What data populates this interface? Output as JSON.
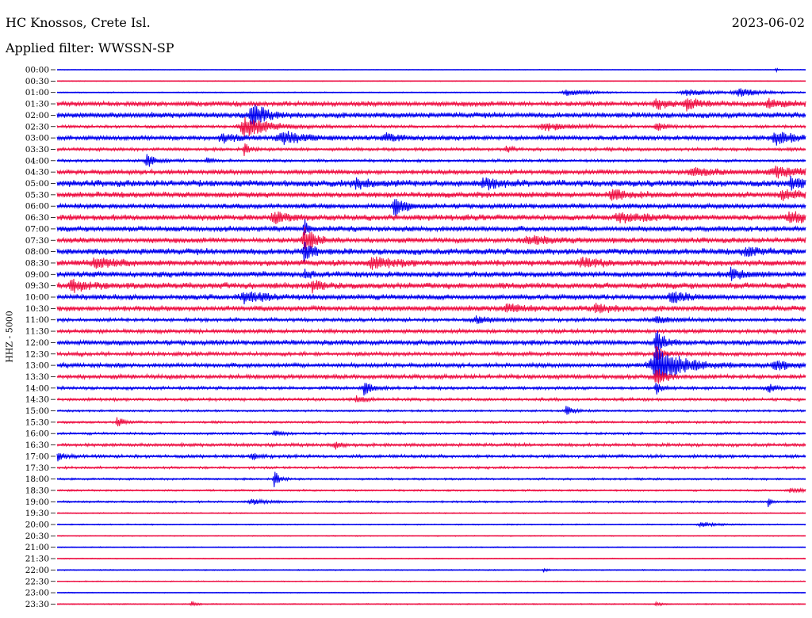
{
  "header": {
    "station": "HC Knossos, Crete Isl.",
    "filter": "Applied filter: WWSSN-SP",
    "date": "2023-06-02",
    "channel": "HHZ - 5000"
  },
  "colors": {
    "trace_a": "#0000ee",
    "trace_b": "#ee1144"
  },
  "chart_data": {
    "type": "line",
    "title": "HC Knossos, Crete Isl.",
    "subtitle": "Applied filter: WWSSN-SP",
    "ylabel": "HHZ - 5000",
    "grid": false,
    "legend": "none",
    "x_range_minutes": [
      0,
      30
    ],
    "rows": [
      {
        "label": "00:00",
        "noise": 0.3,
        "color": "a",
        "events": [
          {
            "x": 0.96,
            "amp": 3,
            "w": 0.003
          }
        ]
      },
      {
        "label": "00:30",
        "noise": 0.4,
        "color": "b",
        "events": []
      },
      {
        "label": "01:00",
        "noise": 0.5,
        "color": "a",
        "events": [
          {
            "x": 0.68,
            "amp": 4,
            "w": 0.03
          },
          {
            "x": 0.84,
            "amp": 4,
            "w": 0.04
          },
          {
            "x": 0.91,
            "amp": 5,
            "w": 0.03
          }
        ]
      },
      {
        "label": "01:30",
        "noise": 2.6,
        "color": "b",
        "events": [
          {
            "x": 0.8,
            "amp": 6,
            "w": 0.02
          },
          {
            "x": 0.84,
            "amp": 6,
            "w": 0.02
          },
          {
            "x": 0.95,
            "amp": 5,
            "w": 0.03
          }
        ]
      },
      {
        "label": "02:00",
        "noise": 2.8,
        "color": "a",
        "events": [
          {
            "x": 0.26,
            "amp": 18,
            "w": 0.015
          }
        ]
      },
      {
        "label": "02:30",
        "noise": 1.5,
        "color": "b",
        "events": [
          {
            "x": 0.25,
            "amp": 14,
            "w": 0.03
          },
          {
            "x": 0.65,
            "amp": 5,
            "w": 0.03
          },
          {
            "x": 0.8,
            "amp": 6,
            "w": 0.01
          }
        ]
      },
      {
        "label": "03:00",
        "noise": 2.4,
        "color": "a",
        "events": [
          {
            "x": 0.22,
            "amp": 5,
            "w": 0.02
          },
          {
            "x": 0.3,
            "amp": 8,
            "w": 0.03
          },
          {
            "x": 0.44,
            "amp": 5,
            "w": 0.02
          },
          {
            "x": 0.96,
            "amp": 7,
            "w": 0.03
          }
        ]
      },
      {
        "label": "03:30",
        "noise": 1.6,
        "color": "b",
        "events": [
          {
            "x": 0.25,
            "amp": 8,
            "w": 0.006
          },
          {
            "x": 0.6,
            "amp": 4,
            "w": 0.006
          }
        ]
      },
      {
        "label": "04:00",
        "noise": 1.4,
        "color": "a",
        "events": [
          {
            "x": 0.12,
            "amp": 9,
            "w": 0.012
          },
          {
            "x": 0.2,
            "amp": 4,
            "w": 0.005
          }
        ]
      },
      {
        "label": "04:30",
        "noise": 2.4,
        "color": "b",
        "events": [
          {
            "x": 0.85,
            "amp": 5,
            "w": 0.03
          },
          {
            "x": 0.96,
            "amp": 6,
            "w": 0.04
          }
        ]
      },
      {
        "label": "05:00",
        "noise": 3.4,
        "color": "a",
        "events": [
          {
            "x": 0.4,
            "amp": 6,
            "w": 0.02
          },
          {
            "x": 0.57,
            "amp": 6,
            "w": 0.02
          },
          {
            "x": 0.98,
            "amp": 6,
            "w": 0.02
          }
        ]
      },
      {
        "label": "05:30",
        "noise": 3.0,
        "color": "b",
        "events": [
          {
            "x": 0.74,
            "amp": 6,
            "w": 0.02
          },
          {
            "x": 0.97,
            "amp": 6,
            "w": 0.02
          }
        ]
      },
      {
        "label": "06:00",
        "noise": 2.6,
        "color": "a",
        "events": [
          {
            "x": 0.45,
            "amp": 13,
            "w": 0.012
          }
        ]
      },
      {
        "label": "06:30",
        "noise": 3.0,
        "color": "b",
        "events": [
          {
            "x": 0.29,
            "amp": 6,
            "w": 0.02
          },
          {
            "x": 0.75,
            "amp": 6,
            "w": 0.03
          },
          {
            "x": 0.98,
            "amp": 8,
            "w": 0.02
          }
        ]
      },
      {
        "label": "07:00",
        "noise": 2.8,
        "color": "a",
        "events": [
          {
            "x": 0.33,
            "amp": 12,
            "w": 0.006
          }
        ]
      },
      {
        "label": "07:30",
        "noise": 2.8,
        "color": "b",
        "events": [
          {
            "x": 0.33,
            "amp": 18,
            "w": 0.012
          },
          {
            "x": 0.63,
            "amp": 5,
            "w": 0.03
          }
        ]
      },
      {
        "label": "08:00",
        "noise": 3.2,
        "color": "a",
        "events": [
          {
            "x": 0.33,
            "amp": 14,
            "w": 0.01
          },
          {
            "x": 0.92,
            "amp": 6,
            "w": 0.02
          }
        ]
      },
      {
        "label": "08:30",
        "noise": 3.2,
        "color": "b",
        "events": [
          {
            "x": 0.05,
            "amp": 5,
            "w": 0.03
          },
          {
            "x": 0.42,
            "amp": 6,
            "w": 0.03
          },
          {
            "x": 0.7,
            "amp": 6,
            "w": 0.02
          }
        ]
      },
      {
        "label": "09:00",
        "noise": 3.0,
        "color": "a",
        "events": [
          {
            "x": 0.33,
            "amp": 8,
            "w": 0.006
          },
          {
            "x": 0.9,
            "amp": 6,
            "w": 0.02
          }
        ]
      },
      {
        "label": "09:30",
        "noise": 3.2,
        "color": "b",
        "events": [
          {
            "x": 0.02,
            "amp": 7,
            "w": 0.02
          },
          {
            "x": 0.34,
            "amp": 9,
            "w": 0.008
          }
        ]
      },
      {
        "label": "10:00",
        "noise": 2.8,
        "color": "a",
        "events": [
          {
            "x": 0.25,
            "amp": 6,
            "w": 0.03
          },
          {
            "x": 0.82,
            "amp": 6,
            "w": 0.02
          }
        ]
      },
      {
        "label": "10:30",
        "noise": 2.8,
        "color": "b",
        "events": [
          {
            "x": 0.6,
            "amp": 5,
            "w": 0.02
          },
          {
            "x": 0.72,
            "amp": 5,
            "w": 0.02
          }
        ]
      },
      {
        "label": "11:00",
        "noise": 1.8,
        "color": "a",
        "events": [
          {
            "x": 0.56,
            "amp": 4,
            "w": 0.02
          },
          {
            "x": 0.8,
            "amp": 4,
            "w": 0.02
          }
        ]
      },
      {
        "label": "11:30",
        "noise": 2.0,
        "color": "b",
        "events": []
      },
      {
        "label": "12:00",
        "noise": 2.6,
        "color": "a",
        "events": [
          {
            "x": 0.8,
            "amp": 16,
            "w": 0.01
          }
        ]
      },
      {
        "label": "12:30",
        "noise": 2.0,
        "color": "b",
        "events": [
          {
            "x": 0.8,
            "amp": 12,
            "w": 0.01
          }
        ]
      },
      {
        "label": "13:00",
        "noise": 2.2,
        "color": "a",
        "events": [
          {
            "x": 0.8,
            "amp": 24,
            "w": 0.035
          },
          {
            "x": 0.96,
            "amp": 6,
            "w": 0.02
          }
        ]
      },
      {
        "label": "13:30",
        "noise": 2.2,
        "color": "b",
        "events": [
          {
            "x": 0.8,
            "amp": 10,
            "w": 0.012
          }
        ]
      },
      {
        "label": "14:00",
        "noise": 1.6,
        "color": "a",
        "events": [
          {
            "x": 0.41,
            "amp": 9,
            "w": 0.01
          },
          {
            "x": 0.8,
            "amp": 8,
            "w": 0.008
          },
          {
            "x": 0.95,
            "amp": 6,
            "w": 0.008
          }
        ]
      },
      {
        "label": "14:30",
        "noise": 1.5,
        "color": "b",
        "events": [
          {
            "x": 0.4,
            "amp": 5,
            "w": 0.01
          }
        ]
      },
      {
        "label": "15:00",
        "noise": 1.0,
        "color": "a",
        "events": [
          {
            "x": 0.68,
            "amp": 6,
            "w": 0.01
          }
        ]
      },
      {
        "label": "15:30",
        "noise": 1.2,
        "color": "b",
        "events": [
          {
            "x": 0.08,
            "amp": 7,
            "w": 0.008
          }
        ]
      },
      {
        "label": "16:00",
        "noise": 1.2,
        "color": "a",
        "events": [
          {
            "x": 0.29,
            "amp": 4,
            "w": 0.008
          }
        ]
      },
      {
        "label": "16:30",
        "noise": 1.6,
        "color": "b",
        "events": [
          {
            "x": 0.37,
            "amp": 6,
            "w": 0.008
          }
        ]
      },
      {
        "label": "17:00",
        "noise": 1.6,
        "color": "a",
        "events": [
          {
            "x": 0.0,
            "amp": 5,
            "w": 0.01
          },
          {
            "x": 0.26,
            "amp": 4,
            "w": 0.01
          }
        ]
      },
      {
        "label": "17:30",
        "noise": 1.2,
        "color": "b",
        "events": []
      },
      {
        "label": "18:00",
        "noise": 1.0,
        "color": "a",
        "events": [
          {
            "x": 0.29,
            "amp": 11,
            "w": 0.006
          }
        ]
      },
      {
        "label": "18:30",
        "noise": 0.9,
        "color": "b",
        "events": [
          {
            "x": 0.98,
            "amp": 3,
            "w": 0.02
          }
        ]
      },
      {
        "label": "19:00",
        "noise": 1.0,
        "color": "a",
        "events": [
          {
            "x": 0.26,
            "amp": 3,
            "w": 0.02
          },
          {
            "x": 0.95,
            "amp": 9,
            "w": 0.003
          }
        ]
      },
      {
        "label": "19:30",
        "noise": 0.6,
        "color": "b",
        "events": []
      },
      {
        "label": "20:00",
        "noise": 0.6,
        "color": "a",
        "events": [
          {
            "x": 0.86,
            "amp": 3,
            "w": 0.02
          }
        ]
      },
      {
        "label": "20:30",
        "noise": 0.5,
        "color": "b",
        "events": []
      },
      {
        "label": "21:00",
        "noise": 0.5,
        "color": "a",
        "events": []
      },
      {
        "label": "21:30",
        "noise": 0.5,
        "color": "b",
        "events": []
      },
      {
        "label": "22:00",
        "noise": 0.6,
        "color": "a",
        "events": [
          {
            "x": 0.65,
            "amp": 4,
            "w": 0.003
          }
        ]
      },
      {
        "label": "22:30",
        "noise": 0.5,
        "color": "b",
        "events": []
      },
      {
        "label": "23:00",
        "noise": 0.5,
        "color": "a",
        "events": []
      },
      {
        "label": "23:30",
        "noise": 0.6,
        "color": "b",
        "events": [
          {
            "x": 0.18,
            "amp": 3,
            "w": 0.006
          },
          {
            "x": 0.8,
            "amp": 3,
            "w": 0.006
          }
        ]
      }
    ]
  }
}
